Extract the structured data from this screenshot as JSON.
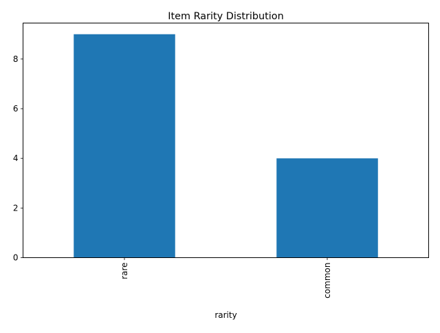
{
  "chart_data": {
    "type": "bar",
    "title": "Item Rarity Distribution",
    "xlabel": "rarity",
    "ylabel": "",
    "categories": [
      "rare",
      "common"
    ],
    "values": [
      9,
      4
    ],
    "ylim": [
      0,
      9.45
    ],
    "yticks": [
      0,
      2,
      4,
      6,
      8
    ],
    "grid": false,
    "legend": "none",
    "colors": {
      "bar": "#1f77b4",
      "axis": "#000000",
      "background": "#ffffff"
    }
  }
}
